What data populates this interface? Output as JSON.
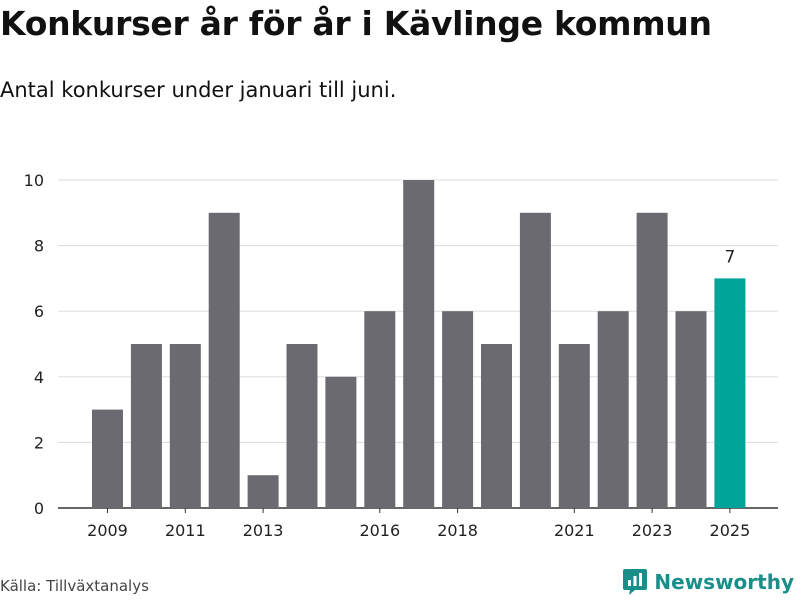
{
  "title": "Konkurser år för år i Kävlinge kommun",
  "subtitle": "Antal konkurser under januari till juni.",
  "source": "Källa: Tillväxtanalys",
  "brand": {
    "name": "Newsworthy",
    "icon": "newsworthy-logo-icon"
  },
  "colors": {
    "bar": "#6b6a70",
    "highlight": "#00a499",
    "grid": "#dddddd",
    "axis": "#333333",
    "brand": "#1a8f8a"
  },
  "chart_data": {
    "type": "bar",
    "categories": [
      "2009",
      "2010",
      "2011",
      "2012",
      "2013",
      "2014",
      "2015",
      "2016",
      "2017",
      "2018",
      "2019",
      "2020",
      "2021",
      "2022",
      "2023",
      "2024",
      "2025"
    ],
    "values": [
      3,
      5,
      5,
      9,
      1,
      5,
      4,
      6,
      10,
      6,
      5,
      9,
      5,
      6,
      9,
      6,
      7
    ],
    "x_tick_labels": [
      "2009",
      "2011",
      "2013",
      "2016",
      "2018",
      "2021",
      "2023",
      "2025"
    ],
    "y_ticks": [
      0,
      2,
      4,
      6,
      8,
      10
    ],
    "ylim": [
      0,
      10
    ],
    "highlight_index": 16,
    "highlight_label": "7",
    "grid": true,
    "title": "Konkurser år för år i Kävlinge kommun",
    "subtitle": "Antal konkurser under januari till juni.",
    "xlabel": "",
    "ylabel": ""
  }
}
